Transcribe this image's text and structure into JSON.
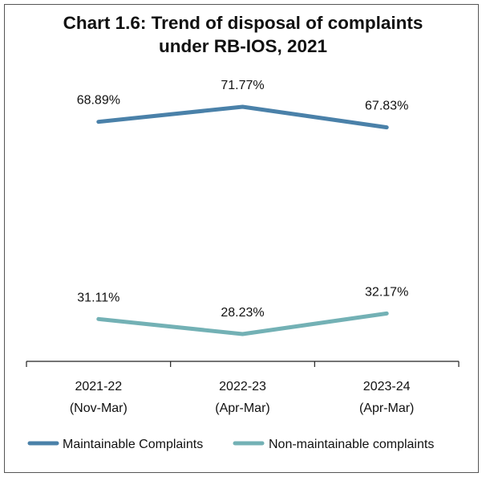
{
  "chart_data": {
    "type": "line",
    "title_lines": [
      "Chart 1.6: Trend of disposal of complaints",
      "under RB-IOS, 2021"
    ],
    "categories": [
      [
        "2021-22",
        "(Nov-Mar)"
      ],
      [
        "2022-23",
        "(Apr-Mar)"
      ],
      [
        "2023-24",
        "(Apr-Mar)"
      ]
    ],
    "series": [
      {
        "name": "Maintainable Complaints",
        "values": [
          68.89,
          71.77,
          67.83
        ],
        "labels": [
          "68.89%",
          "71.77%",
          "67.83%"
        ],
        "color": "#4a81a9"
      },
      {
        "name": "Non-maintainable complaints",
        "values": [
          31.11,
          28.23,
          32.17
        ],
        "labels": [
          "31.11%",
          "28.23%",
          "32.17%"
        ],
        "color": "#73b1b5"
      }
    ],
    "ylim": [
      0,
      100
    ],
    "grid": false,
    "y_axis_visible": false,
    "legend_position": "bottom"
  }
}
